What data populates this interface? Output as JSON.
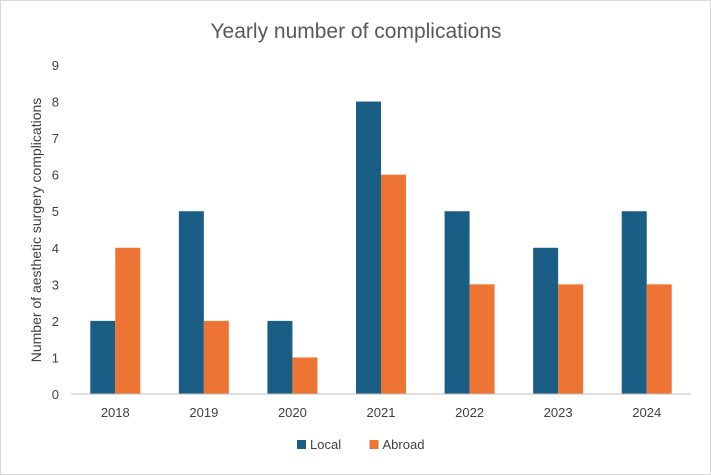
{
  "chart_data": {
    "type": "bar",
    "title": "Yearly number of complications",
    "xlabel": "",
    "ylabel": "Number of aesthetic surgery complications",
    "categories": [
      "2018",
      "2019",
      "2020",
      "2021",
      "2022",
      "2023",
      "2024"
    ],
    "series": [
      {
        "name": "Local",
        "color": "#1a5e85",
        "values": [
          2,
          5,
          2,
          8,
          5,
          4,
          5
        ]
      },
      {
        "name": "Abroad",
        "color": "#ed7433",
        "values": [
          4,
          2,
          1,
          6,
          3,
          3,
          3
        ]
      }
    ],
    "ylim": [
      0,
      9
    ],
    "yticks": [
      0,
      1,
      2,
      3,
      4,
      5,
      6,
      7,
      8,
      9
    ],
    "grid": false,
    "legend": "bottom"
  }
}
